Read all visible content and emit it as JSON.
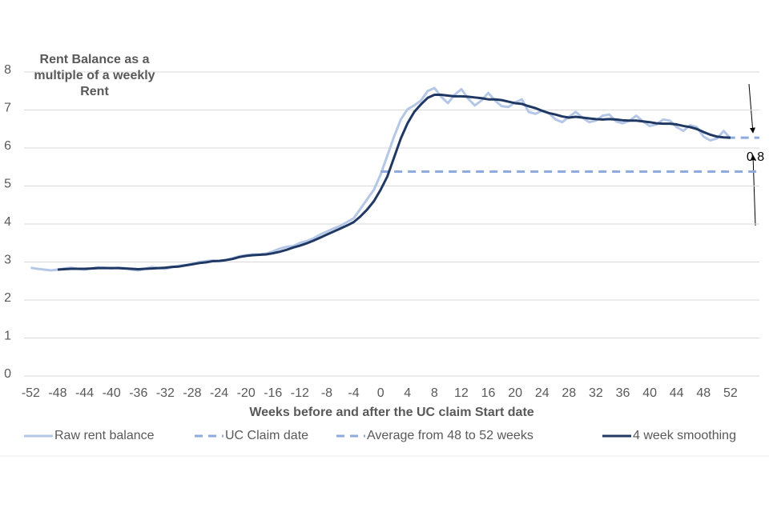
{
  "chart_data": {
    "type": "line",
    "y_label": [
      "Rent Balance as a",
      "multiple of a weekly",
      "Rent"
    ],
    "x_label": "Weeks before and after the UC claim Start date",
    "annotation": "0.8",
    "xlim": [
      -53,
      56.3
    ],
    "xticks": [
      -52,
      -48,
      -44,
      -40,
      -36,
      -32,
      -28,
      -24,
      -20,
      -16,
      -12,
      -8,
      -4,
      0,
      4,
      8,
      12,
      16,
      20,
      24,
      28,
      32,
      36,
      40,
      44,
      48,
      52
    ],
    "ylim": [
      0,
      8
    ],
    "yticks": [
      0,
      1,
      2,
      3,
      4,
      5,
      6,
      7,
      8
    ],
    "grid": true,
    "series": [
      {
        "name": "Raw rent balance",
        "color": "#b4c7e7",
        "dash": false,
        "x": [
          -52,
          -51,
          -50,
          -49,
          -48,
          -47,
          -46,
          -45,
          -44,
          -43,
          -42,
          -41,
          -40,
          -39,
          -38,
          -37,
          -36,
          -35,
          -34,
          -33,
          -32,
          -31,
          -30,
          -29,
          -28,
          -27,
          -26,
          -25,
          -24,
          -23,
          -22,
          -21,
          -20,
          -19,
          -18,
          -17,
          -16,
          -15,
          -14,
          -13,
          -12,
          -11,
          -10,
          -9,
          -8,
          -7,
          -6,
          -5,
          -4,
          -3,
          -2,
          -1,
          0,
          1,
          2,
          3,
          4,
          5,
          6,
          7,
          8,
          9,
          10,
          11,
          12,
          13,
          14,
          15,
          16,
          17,
          18,
          19,
          20,
          21,
          22,
          23,
          24,
          25,
          26,
          27,
          28,
          29,
          30,
          31,
          32,
          33,
          34,
          35,
          36,
          37,
          38,
          39,
          40,
          41,
          42,
          43,
          44,
          45,
          46,
          47,
          48,
          49,
          50,
          51,
          52
        ],
        "values": [
          2.85,
          2.82,
          2.8,
          2.78,
          2.8,
          2.83,
          2.85,
          2.82,
          2.8,
          2.83,
          2.86,
          2.85,
          2.83,
          2.85,
          2.84,
          2.8,
          2.78,
          2.82,
          2.87,
          2.84,
          2.82,
          2.86,
          2.9,
          2.92,
          2.95,
          3.0,
          3.02,
          3.04,
          3.02,
          3.05,
          3.1,
          3.15,
          3.18,
          3.2,
          3.2,
          3.22,
          3.28,
          3.35,
          3.4,
          3.42,
          3.5,
          3.55,
          3.62,
          3.72,
          3.8,
          3.88,
          3.95,
          4.05,
          4.15,
          4.4,
          4.65,
          4.9,
          5.3,
          5.8,
          6.3,
          6.75,
          7.02,
          7.12,
          7.25,
          7.5,
          7.58,
          7.35,
          7.18,
          7.4,
          7.55,
          7.3,
          7.12,
          7.25,
          7.45,
          7.25,
          7.1,
          7.08,
          7.2,
          7.28,
          6.95,
          6.9,
          6.98,
          6.92,
          6.75,
          6.68,
          6.82,
          6.95,
          6.8,
          6.68,
          6.72,
          6.85,
          6.88,
          6.7,
          6.65,
          6.72,
          6.85,
          6.7,
          6.58,
          6.62,
          6.75,
          6.72,
          6.55,
          6.45,
          6.6,
          6.55,
          6.3,
          6.2,
          6.25,
          6.45,
          6.25
        ]
      },
      {
        "name": "UC Claim date",
        "color": "#8faadc",
        "dash": true,
        "x": [
          0,
          56.3
        ],
        "values": [
          5.38,
          5.38
        ]
      },
      {
        "name": "Average from 48 to 52 weeks",
        "color": "#8faadc",
        "dash": true,
        "x": [
          51.5,
          56.3
        ],
        "values": [
          6.27,
          6.27
        ]
      },
      {
        "name": "4 week smoothing",
        "color": "#203864",
        "dash": false,
        "x": [
          -48,
          -47,
          -46,
          -45,
          -44,
          -43,
          -42,
          -41,
          -40,
          -39,
          -38,
          -37,
          -36,
          -35,
          -34,
          -33,
          -32,
          -31,
          -30,
          -29,
          -28,
          -27,
          -26,
          -25,
          -24,
          -23,
          -22,
          -21,
          -20,
          -19,
          -18,
          -17,
          -16,
          -15,
          -14,
          -13,
          -12,
          -11,
          -10,
          -9,
          -8,
          -7,
          -6,
          -5,
          -4,
          -3,
          -2,
          -1,
          0,
          1,
          2,
          3,
          4,
          5,
          6,
          7,
          8,
          9,
          10,
          11,
          12,
          13,
          14,
          15,
          16,
          17,
          18,
          19,
          20,
          21,
          22,
          23,
          24,
          25,
          26,
          27,
          28,
          29,
          30,
          31,
          32,
          33,
          34,
          35,
          36,
          37,
          38,
          39,
          40,
          41,
          42,
          43,
          44,
          45,
          46,
          47,
          48,
          49,
          50,
          51,
          52
        ],
        "values": [
          2.8,
          2.81,
          2.82,
          2.82,
          2.82,
          2.83,
          2.84,
          2.84,
          2.84,
          2.84,
          2.83,
          2.82,
          2.81,
          2.82,
          2.83,
          2.84,
          2.85,
          2.87,
          2.88,
          2.91,
          2.94,
          2.97,
          2.99,
          3.02,
          3.03,
          3.05,
          3.08,
          3.13,
          3.16,
          3.18,
          3.19,
          3.2,
          3.23,
          3.27,
          3.32,
          3.38,
          3.43,
          3.49,
          3.56,
          3.64,
          3.72,
          3.8,
          3.88,
          3.96,
          4.05,
          4.2,
          4.38,
          4.6,
          4.9,
          5.25,
          5.75,
          6.25,
          6.65,
          6.95,
          7.15,
          7.32,
          7.4,
          7.4,
          7.38,
          7.36,
          7.36,
          7.35,
          7.33,
          7.31,
          7.28,
          7.28,
          7.26,
          7.22,
          7.18,
          7.16,
          7.1,
          7.05,
          6.98,
          6.92,
          6.88,
          6.83,
          6.8,
          6.82,
          6.8,
          6.78,
          6.76,
          6.75,
          6.76,
          6.75,
          6.73,
          6.72,
          6.72,
          6.7,
          6.68,
          6.65,
          6.64,
          6.64,
          6.62,
          6.58,
          6.55,
          6.5,
          6.42,
          6.35,
          6.3,
          6.28,
          6.27
        ]
      }
    ]
  }
}
